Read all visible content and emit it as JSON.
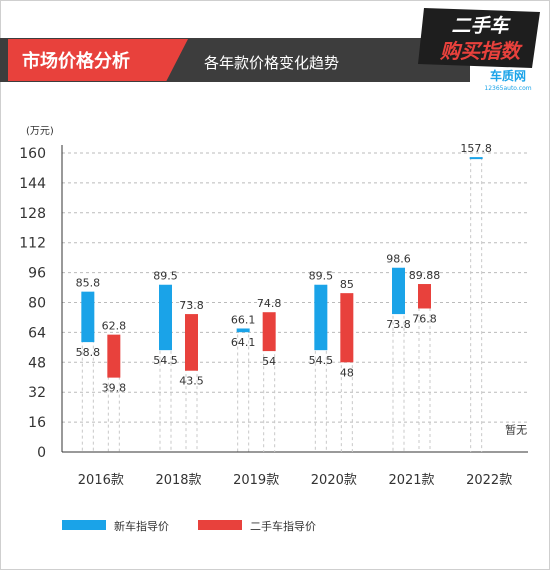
{
  "header": {
    "section_title": "市场价格分析",
    "subtitle": "各年款价格变化趋势",
    "logo_line1": "二手车",
    "logo_line2": "购买指数",
    "logo_brand": "车质网",
    "logo_url": "12365auto.com"
  },
  "colors": {
    "new_car": "#1aa3e8",
    "used_car": "#e8413c",
    "banner_dark": "#3d3d3d",
    "banner_red": "#e8413c",
    "grid": "#bbbbbb"
  },
  "chart_data": {
    "type": "bar",
    "subtype": "floating-range",
    "ylabel": "(万元)",
    "ylim": [
      0,
      160
    ],
    "yticks": [
      0,
      16,
      32,
      48,
      64,
      80,
      96,
      112,
      128,
      144,
      160
    ],
    "grid": "horizontal-dashed",
    "legend_placement": "bottom-left",
    "categories": [
      "2016款",
      "2018款",
      "2019款",
      "2020款",
      "2021款",
      "2022款"
    ],
    "series": [
      {
        "name": "新车指导价",
        "color": "#1aa3e8",
        "ranges": [
          [
            58.8,
            85.8
          ],
          [
            54.5,
            89.5
          ],
          [
            64.1,
            66.1
          ],
          [
            54.5,
            89.5
          ],
          [
            73.8,
            98.6
          ],
          [
            157.8,
            157.8
          ]
        ],
        "low_labels": [
          "58.8",
          "54.5",
          "64.1",
          "54.5",
          "73.8",
          ""
        ],
        "high_labels": [
          "85.8",
          "89.5",
          "66.1",
          "89.5",
          "98.6",
          "157.8"
        ]
      },
      {
        "name": "二手车指导价",
        "color": "#e8413c",
        "ranges": [
          [
            39.8,
            62.8
          ],
          [
            43.5,
            73.8
          ],
          [
            54,
            74.8
          ],
          [
            48,
            85
          ],
          [
            76.8,
            89.88
          ],
          null
        ],
        "low_labels": [
          "39.8",
          "43.5",
          "54",
          "48",
          "76.8",
          ""
        ],
        "high_labels": [
          "62.8",
          "73.8",
          "74.8",
          "85",
          "89.88",
          ""
        ],
        "missing_label": "暂无"
      }
    ]
  }
}
